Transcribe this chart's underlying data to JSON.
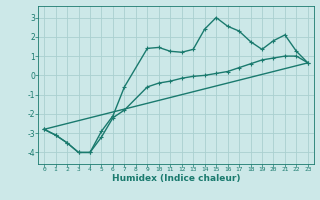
{
  "xlabel": "Humidex (Indice chaleur)",
  "bg_color": "#cce8e8",
  "grid_color": "#aad0d0",
  "line_color": "#1a7a6e",
  "xlim": [
    -0.5,
    23.5
  ],
  "ylim": [
    -4.6,
    3.6
  ],
  "xticks": [
    0,
    1,
    2,
    3,
    4,
    5,
    6,
    7,
    8,
    9,
    10,
    11,
    12,
    13,
    14,
    15,
    16,
    17,
    18,
    19,
    20,
    21,
    22,
    23
  ],
  "yticks": [
    -4,
    -3,
    -2,
    -1,
    0,
    1,
    2,
    3
  ],
  "line1_x": [
    0,
    1,
    2,
    3,
    4,
    5,
    6,
    7,
    9,
    10,
    11,
    12,
    13,
    14,
    15,
    16,
    17,
    18,
    19,
    20,
    21,
    22,
    23
  ],
  "line1_y": [
    -2.8,
    -3.1,
    -3.5,
    -4.0,
    -4.0,
    -3.2,
    -2.2,
    -1.8,
    -0.6,
    -0.4,
    -0.3,
    -0.15,
    -0.05,
    0.0,
    0.1,
    0.2,
    0.4,
    0.6,
    0.8,
    0.9,
    1.0,
    1.0,
    0.65
  ],
  "line2_x": [
    0,
    1,
    2,
    3,
    4,
    5,
    6,
    7,
    9,
    10,
    11,
    12,
    13,
    14,
    15,
    16,
    17,
    18,
    19,
    20,
    21,
    22,
    23
  ],
  "line2_y": [
    -2.8,
    -3.1,
    -3.5,
    -4.0,
    -4.0,
    -2.9,
    -2.1,
    -0.6,
    1.4,
    1.45,
    1.25,
    1.2,
    1.35,
    2.4,
    3.0,
    2.55,
    2.3,
    1.75,
    1.35,
    1.8,
    2.1,
    1.25,
    0.65
  ],
  "line3_x": [
    0,
    23
  ],
  "line3_y": [
    -2.8,
    0.65
  ],
  "marker_size": 3.0,
  "lw": 1.0
}
